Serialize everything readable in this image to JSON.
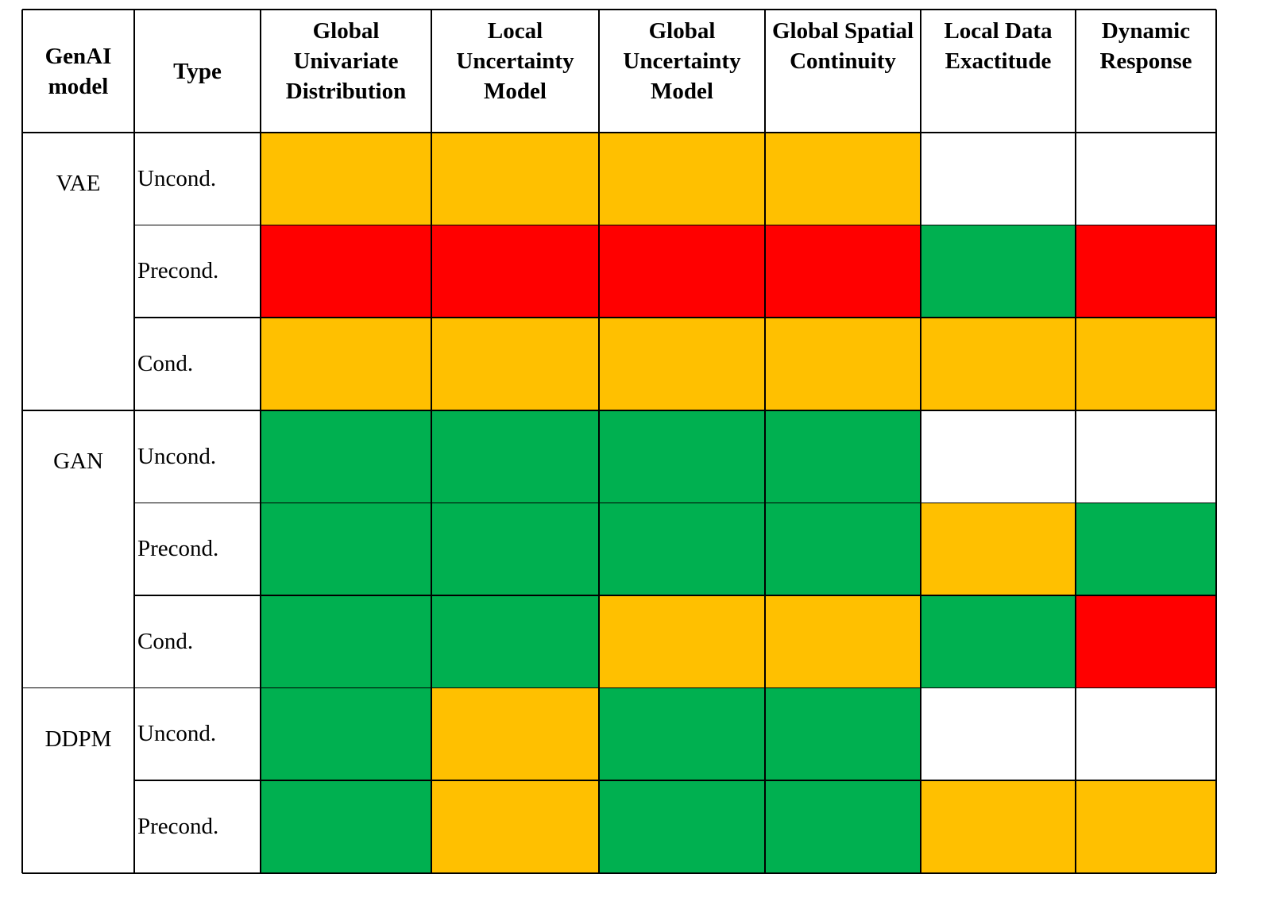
{
  "colors": {
    "good": "#00b050",
    "moderate": "#ffc000",
    "poor": "#ff0000",
    "empty": "#ffffff"
  },
  "table": {
    "headers": [
      "GenAI model",
      "Type",
      "Global Univariate Distribution",
      "Local Uncertainty Model",
      "Global Uncertainty Model",
      "Global Spatial Continuity",
      "Local Data Exactitude",
      "Dynamic Response"
    ],
    "groups": [
      {
        "model": "VAE",
        "rows": [
          {
            "type": "Uncond.",
            "cells": [
              "moderate",
              "moderate",
              "moderate",
              "moderate",
              "empty",
              "empty"
            ]
          },
          {
            "type": "Precond.",
            "cells": [
              "poor",
              "poor",
              "poor",
              "poor",
              "good",
              "poor"
            ]
          },
          {
            "type": "Cond.",
            "cells": [
              "moderate",
              "moderate",
              "moderate",
              "moderate",
              "moderate",
              "moderate"
            ]
          }
        ]
      },
      {
        "model": "GAN",
        "rows": [
          {
            "type": "Uncond.",
            "cells": [
              "good",
              "good",
              "good",
              "good",
              "empty",
              "empty"
            ]
          },
          {
            "type": "Precond.",
            "cells": [
              "good",
              "good",
              "good",
              "good",
              "moderate",
              "good"
            ]
          },
          {
            "type": "Cond.",
            "cells": [
              "good",
              "good",
              "moderate",
              "moderate",
              "good",
              "poor"
            ]
          }
        ]
      },
      {
        "model": "DDPM",
        "rows": [
          {
            "type": "Uncond.",
            "cells": [
              "good",
              "moderate",
              "good",
              "good",
              "empty",
              "empty"
            ]
          },
          {
            "type": "Precond.",
            "cells": [
              "good",
              "moderate",
              "good",
              "good",
              "moderate",
              "moderate"
            ]
          }
        ]
      }
    ]
  }
}
